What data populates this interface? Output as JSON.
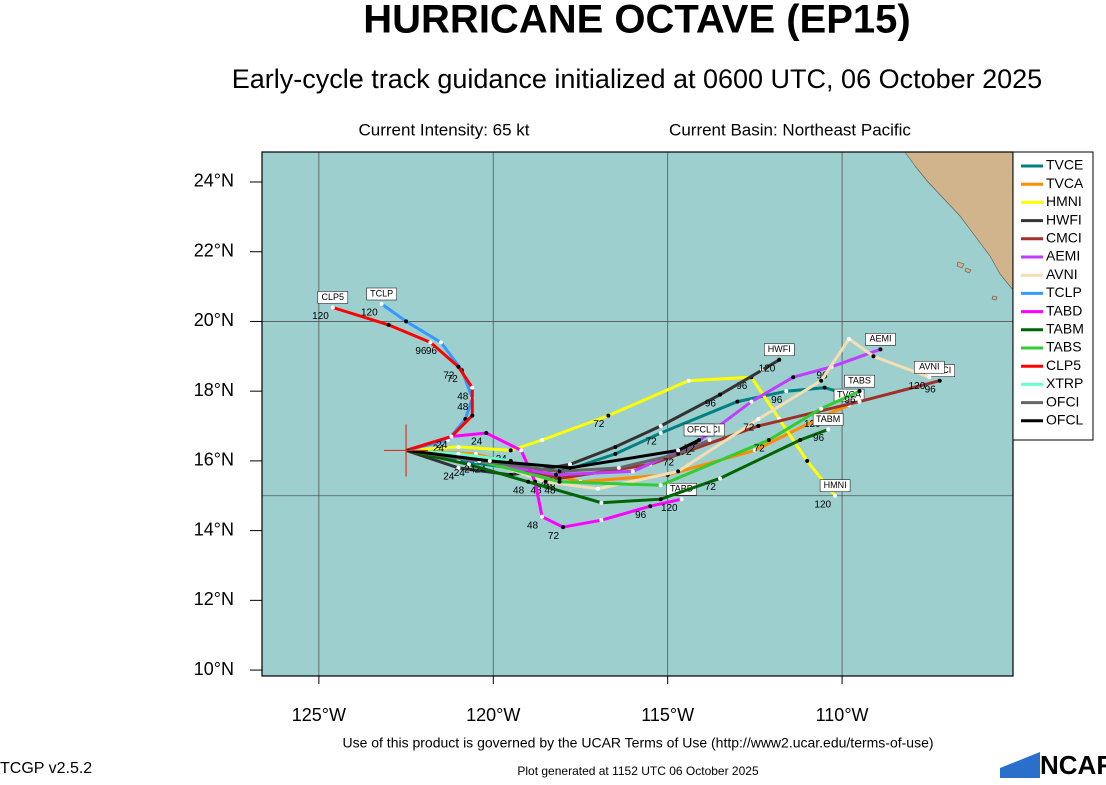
{
  "chart_data": {
    "type": "track-map",
    "title": "HURRICANE OCTAVE (EP15)",
    "subtitle": "Early-cycle track guidance initialized at 0600 UTC, 06 October 2025",
    "intensity": "Current Intensity: 65 kt",
    "basin": "Current Basin: Northeast Pacific",
    "terms": "Use of this product is governed by the UCAR Terms of Use (http://www2.ucar.edu/terms-of-use)",
    "version": "TCGP v2.5.2",
    "generated": "Plot generated at 1152 UTC   06 October 2025",
    "logo": "NCAR",
    "lonlim": [
      -126.63,
      -105.1
    ],
    "latlim": [
      9.83,
      24.86
    ],
    "xticks": [
      {
        "value": -125,
        "label": "125°W"
      },
      {
        "value": -120,
        "label": "120°W"
      },
      {
        "value": -115,
        "label": "115°W"
      },
      {
        "value": -110,
        "label": "110°W"
      }
    ],
    "yticks": [
      {
        "value": 10,
        "label": "10°N"
      },
      {
        "value": 12,
        "label": "12°N"
      },
      {
        "value": 14,
        "label": "14°N"
      },
      {
        "value": 16,
        "label": "16°N"
      },
      {
        "value": 18,
        "label": "18°N"
      },
      {
        "value": 20,
        "label": "20°N"
      },
      {
        "value": 22,
        "label": "22°N"
      },
      {
        "value": 24,
        "label": "24°N"
      }
    ],
    "grid_lon": [
      -125,
      -120,
      -115,
      -110
    ],
    "grid_lat": [
      15,
      20
    ],
    "ocean_color": "#9dcfcf",
    "land_color": "#d2b48c",
    "current_position": {
      "lon": -122.5,
      "lat": 16.3,
      "color": "#e03020"
    },
    "series": [
      {
        "name": "TVCE",
        "color": "#008080",
        "end_tag": false,
        "lon": [
          -122.5,
          -121,
          -119.5,
          -118,
          -116.5,
          -115.2,
          -113,
          -111.6,
          -110.5,
          -109.5
        ],
        "lat": [
          16.3,
          16.0,
          15.8,
          15.7,
          16.2,
          16.8,
          17.7,
          18.0,
          18.1,
          17.8
        ],
        "labels": [
          null,
          null,
          null,
          "48",
          null,
          "72",
          null,
          "96",
          null,
          null
        ]
      },
      {
        "name": "TVCA",
        "color": "#ff8c00",
        "end_tag": true,
        "lon": [
          -122.5,
          -120.5,
          -119,
          -117.5,
          -115,
          -112.5,
          -110.5,
          -109.8
        ],
        "lat": [
          16.3,
          16.2,
          15.8,
          15.4,
          15.6,
          16.3,
          17.3,
          17.6
        ],
        "labels": [
          null,
          null,
          null,
          null,
          null,
          null,
          "120",
          null
        ]
      },
      {
        "name": "HMNI",
        "color": "#ffff00",
        "end_tag": true,
        "lon": [
          -122.5,
          -121,
          -119.5,
          -118.6,
          -116.7,
          -114.4,
          -112.6,
          -111.8,
          -111,
          -110.2
        ],
        "lat": [
          16.3,
          16.4,
          16.3,
          16.6,
          17.3,
          18.3,
          18.4,
          17.2,
          16.0,
          15.0
        ],
        "labels": [
          null,
          null,
          "24",
          null,
          "72",
          null,
          "96",
          null,
          null,
          "120"
        ]
      },
      {
        "name": "HWFI",
        "color": "#333333",
        "end_tag": true,
        "lon": [
          -122.5,
          -121,
          -119.5,
          -117.8,
          -116.5,
          -115.2,
          -113.5,
          -112.3,
          -111.8
        ],
        "lat": [
          16.3,
          15.8,
          15.6,
          15.9,
          16.4,
          17.0,
          17.9,
          18.6,
          18.9
        ],
        "labels": [
          null,
          "24",
          null,
          "48",
          null,
          null,
          "96",
          null,
          "120"
        ]
      },
      {
        "name": "CMCI",
        "color": "#a0302a",
        "end_tag": true,
        "lon": [
          -122.5,
          -120.1,
          -118.1,
          -115.5,
          -112.4,
          -109.5,
          -107.2
        ],
        "lat": [
          16.3,
          16.0,
          15.5,
          15.9,
          17.0,
          17.7,
          18.3
        ],
        "labels": [
          null,
          "24",
          "48",
          null,
          null,
          null,
          "96"
        ]
      },
      {
        "name": "AEMI",
        "color": "#bf3eff",
        "end_tag": true,
        "lon": [
          -122.5,
          -120.5,
          -118.2,
          -116,
          -114.2,
          -112.6,
          -111.4,
          -110.3,
          -108.9
        ],
        "lat": [
          16.3,
          16.0,
          15.6,
          15.7,
          16.5,
          17.7,
          18.4,
          18.7,
          19.2
        ],
        "labels": [
          null,
          null,
          "48",
          null,
          "72",
          null,
          null,
          "96",
          null
        ]
      },
      {
        "name": "AVNI",
        "color": "#f5deb3",
        "end_tag": true,
        "lon": [
          -122.5,
          -120.5,
          -118.5,
          -117,
          -114.7,
          -112.4,
          -110.6,
          -109.8,
          -109.1,
          -107.5
        ],
        "lat": [
          16.3,
          16.1,
          15.4,
          15.2,
          15.7,
          17.2,
          18.3,
          19.5,
          19.0,
          18.4
        ],
        "labels": [
          null,
          null,
          "48",
          null,
          null,
          "72",
          null,
          null,
          null,
          "120"
        ]
      },
      {
        "name": "TCLP",
        "color": "#3399ff",
        "end_tag": true,
        "lon": [
          -122.5,
          -121.3,
          -120.8,
          -120.6,
          -120.9,
          -121.5,
          -122.5,
          -123.2
        ],
        "lat": [
          16.3,
          16.6,
          17.2,
          17.8,
          18.6,
          19.4,
          20.0,
          20.5
        ],
        "labels": [
          null,
          "24",
          null,
          "48",
          "72",
          "96",
          null,
          "120"
        ]
      },
      {
        "name": "TABD",
        "color": "#ff00ff",
        "end_tag": true,
        "lon": [
          -122.5,
          -121.2,
          -120.2,
          -119.2,
          -118.8,
          -118.6,
          -118,
          -116.9,
          -115.5,
          -114.6
        ],
        "lat": [
          16.3,
          16.7,
          16.8,
          16.3,
          15.4,
          14.4,
          14.1,
          14.3,
          14.7,
          14.9
        ],
        "labels": [
          null,
          null,
          "24",
          null,
          null,
          "48",
          "72",
          null,
          "96",
          "120"
        ]
      },
      {
        "name": "TABM",
        "color": "#006400",
        "end_tag": true,
        "lon": [
          -122.5,
          -120.7,
          -119,
          -116.9,
          -115.2,
          -113.5,
          -111.2,
          -110.4
        ],
        "lat": [
          16.3,
          15.9,
          15.4,
          14.8,
          14.9,
          15.5,
          16.6,
          16.9
        ],
        "labels": [
          null,
          "24",
          "48",
          null,
          null,
          "72",
          null,
          "96"
        ]
      },
      {
        "name": "TABS",
        "color": "#33cc33",
        "end_tag": true,
        "lon": [
          -122.5,
          -120.4,
          -118.1,
          -115.2,
          -112.1,
          -110.6,
          -109.5
        ],
        "lat": [
          16.3,
          16.0,
          15.4,
          15.3,
          16.6,
          17.5,
          18.0
        ],
        "labels": [
          null,
          "24",
          "48",
          null,
          "72",
          null,
          "96"
        ]
      },
      {
        "name": "CLP5",
        "color": "#ff0000",
        "end_tag": true,
        "lon": [
          -122.5,
          -121.2,
          -120.6,
          -120.6,
          -121,
          -121.8,
          -123,
          -124.6
        ],
        "lat": [
          16.3,
          16.7,
          17.3,
          18.1,
          18.7,
          19.4,
          19.9,
          20.4
        ],
        "labels": [
          null,
          "24",
          null,
          "48",
          "72",
          "96",
          null,
          "120"
        ]
      },
      {
        "name": "XTRP",
        "color": "#66ffcc",
        "end_tag": false,
        "lon": [
          -122.5,
          -121,
          -119.5
        ],
        "lat": [
          16.3,
          16.2,
          16.0
        ],
        "labels": [
          null,
          null,
          null
        ]
      },
      {
        "name": "OFCI",
        "color": "#666666",
        "end_tag": true,
        "lon": [
          -122.5,
          -120.4,
          -118.1,
          -116.4,
          -114.7,
          -113.8
        ],
        "lat": [
          16.3,
          16.0,
          15.7,
          15.8,
          16.2,
          16.6
        ],
        "labels": [
          null,
          null,
          null,
          null,
          "72",
          null
        ]
      },
      {
        "name": "OFCL",
        "color": "#000000",
        "end_tag": true,
        "lon": [
          -122.5,
          -120.1,
          -117.8,
          -114.7,
          -114.1
        ],
        "lat": [
          16.3,
          16.0,
          15.8,
          16.3,
          16.6
        ],
        "labels": [
          null,
          null,
          null,
          null,
          "72"
        ]
      }
    ]
  }
}
